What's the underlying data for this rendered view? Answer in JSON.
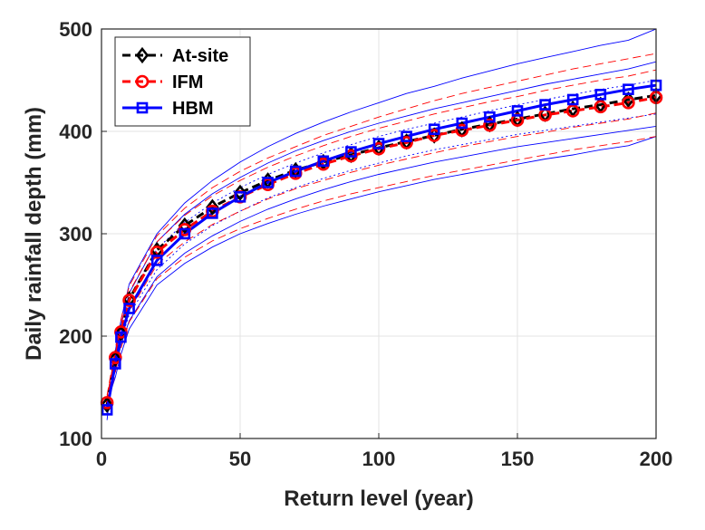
{
  "chart_data": {
    "type": "line",
    "title": "",
    "xlabel": "Return level (year)",
    "ylabel": "Daily rainfall depth (mm)",
    "xlim": [
      0,
      200
    ],
    "ylim": [
      100,
      500
    ],
    "xticks": [
      "0",
      "50",
      "100",
      "150",
      "200"
    ],
    "yticks": [
      "100",
      "200",
      "300",
      "400",
      "500"
    ],
    "grid": true,
    "legend_position": "top-left",
    "x": [
      2,
      5,
      7,
      10,
      20,
      30,
      40,
      50,
      60,
      70,
      80,
      90,
      100,
      110,
      120,
      130,
      140,
      150,
      160,
      170,
      180,
      190,
      200
    ],
    "series": [
      {
        "name": "At-site",
        "color": "#000000",
        "line_style": "dashed",
        "marker": "diamond",
        "values": [
          133,
          178,
          203,
          236,
          284,
          308,
          326,
          340,
          352,
          362,
          370,
          377,
          384,
          390,
          396,
          402,
          407,
          412,
          417,
          422,
          426,
          431,
          435
        ]
      },
      {
        "name": "IFM",
        "color": "#ff0000",
        "line_style": "dashed",
        "marker": "circle",
        "values": [
          135,
          179,
          204,
          235,
          282,
          304,
          322,
          336,
          348,
          359,
          368,
          376,
          383,
          389,
          396,
          401,
          406,
          411,
          416,
          420,
          424,
          428,
          433
        ]
      },
      {
        "name": "HBM",
        "color": "#0000ff",
        "line_style": "solid",
        "marker": "square",
        "values": [
          128,
          173,
          199,
          227,
          274,
          300,
          320,
          336,
          350,
          361,
          371,
          380,
          388,
          395,
          402,
          408,
          414,
          420,
          426,
          431,
          436,
          441,
          445
        ]
      }
    ],
    "bounds": [
      {
        "name": "HBM upper bound outer",
        "color": "#0000ff",
        "line_style": "solid",
        "values": [
          118,
          186,
          215,
          251,
          300,
          330,
          352,
          370,
          385,
          398,
          409,
          419,
          428,
          437,
          444,
          452,
          459,
          466,
          472,
          478,
          484,
          489,
          500
        ]
      },
      {
        "name": "HBM upper bound inner",
        "color": "#0000ff",
        "line_style": "solid",
        "values": [
          125,
          182,
          210,
          242,
          292,
          319,
          339,
          355,
          369,
          381,
          391,
          400,
          408,
          415,
          422,
          428,
          434,
          440,
          446,
          451,
          456,
          461,
          468
        ]
      },
      {
        "name": "HBM upper dotted",
        "color": "#0000ff",
        "line_style": "dotted",
        "values": [
          127,
          179,
          206,
          237,
          285,
          311,
          330,
          345,
          358,
          369,
          379,
          387,
          395,
          402,
          408,
          414,
          420,
          426,
          431,
          436,
          441,
          445,
          450
        ]
      },
      {
        "name": "HBM lower dotted",
        "color": "#0000ff",
        "line_style": "dotted",
        "values": [
          128,
          170,
          196,
          221,
          265,
          290,
          308,
          322,
          335,
          345,
          354,
          362,
          369,
          376,
          382,
          387,
          392,
          397,
          401,
          405,
          409,
          413,
          417
        ]
      },
      {
        "name": "HBM lower bound inner",
        "color": "#0000ff",
        "line_style": "solid",
        "values": [
          132,
          167,
          191,
          215,
          258,
          281,
          298,
          312,
          324,
          334,
          343,
          351,
          358,
          364,
          370,
          375,
          380,
          385,
          389,
          393,
          397,
          401,
          405
        ]
      },
      {
        "name": "HBM lower bound outer",
        "color": "#0000ff",
        "line_style": "solid",
        "values": [
          135,
          160,
          182,
          207,
          250,
          271,
          287,
          300,
          310,
          319,
          327,
          334,
          341,
          347,
          353,
          358,
          363,
          368,
          373,
          377,
          382,
          386,
          395
        ]
      },
      {
        "name": "IFM upper bound outer",
        "color": "#ff0000",
        "line_style": "dashed",
        "values": [
          142,
          188,
          216,
          249,
          298,
          325,
          345,
          361,
          374,
          385,
          396,
          405,
          414,
          422,
          430,
          437,
          443,
          449,
          455,
          461,
          466,
          471,
          476
        ]
      },
      {
        "name": "IFM upper bound inner",
        "color": "#ff0000",
        "line_style": "dashed",
        "values": [
          140,
          184,
          211,
          243,
          292,
          318,
          337,
          352,
          365,
          376,
          386,
          395,
          403,
          410,
          417,
          423,
          429,
          434,
          440,
          445,
          450,
          454,
          460
        ]
      },
      {
        "name": "IFM lower bound inner",
        "color": "#ff0000",
        "line_style": "dashed",
        "values": [
          131,
          172,
          195,
          224,
          270,
          292,
          309,
          322,
          334,
          344,
          352,
          360,
          367,
          373,
          379,
          385,
          390,
          395,
          399,
          404,
          408,
          412,
          418
        ]
      },
      {
        "name": "IFM lower bound outer",
        "color": "#ff0000",
        "line_style": "dashed",
        "values": [
          128,
          165,
          188,
          214,
          256,
          277,
          293,
          305,
          315,
          324,
          332,
          339,
          345,
          351,
          357,
          362,
          367,
          372,
          377,
          382,
          386,
          390,
          395
        ]
      }
    ]
  }
}
